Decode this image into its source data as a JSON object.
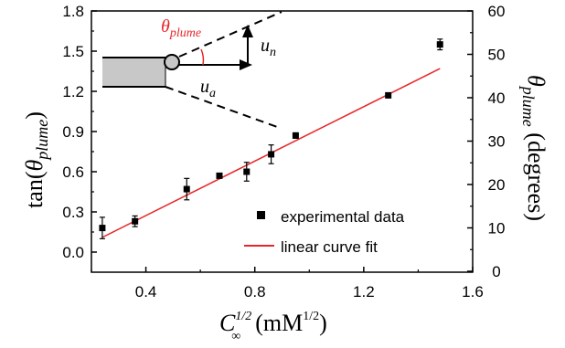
{
  "chart_data": {
    "type": "scatter",
    "xlabel": {
      "main": "C",
      "sup": "1/2",
      "sub": "∞",
      "unit": "mM",
      "unit_sup": "1/2"
    },
    "ylabel_left": {
      "main": "tan(",
      "theta": "θ",
      "sub": "plume",
      "close": ")"
    },
    "ylabel_right": {
      "theta": "θ",
      "sub": "plume",
      "unit": " (degrees)"
    },
    "xlim": [
      0.2,
      1.6
    ],
    "ylim_left": [
      -0.15,
      1.8
    ],
    "ylim_right": [
      0,
      60
    ],
    "x_ticks": [
      "0.4",
      "0.8",
      "1.2",
      "1.6"
    ],
    "x_tick_values": [
      0.4,
      0.8,
      1.2,
      1.6
    ],
    "y_left_ticks": [
      "0.0",
      "0.3",
      "0.6",
      "0.9",
      "1.2",
      "1.5",
      "1.8"
    ],
    "y_left_tick_values": [
      0.0,
      0.3,
      0.6,
      0.9,
      1.2,
      1.5,
      1.8
    ],
    "y_right_ticks": [
      "0",
      "10",
      "20",
      "30",
      "40",
      "50",
      "60"
    ],
    "y_right_tick_values": [
      0,
      10,
      20,
      30,
      40,
      50,
      60
    ],
    "series": [
      {
        "name": "experimental data",
        "marker": "square",
        "color": "#000000",
        "x": [
          0.24,
          0.36,
          0.55,
          0.67,
          0.77,
          0.86,
          0.95,
          1.29,
          1.48
        ],
        "y": [
          0.18,
          0.23,
          0.47,
          0.57,
          0.6,
          0.73,
          0.87,
          1.17,
          1.55
        ],
        "err": [
          0.08,
          0.04,
          0.08,
          0.01,
          0.07,
          0.07,
          0.02,
          0.01,
          0.04
        ]
      },
      {
        "name": "linear curve fit",
        "type": "line",
        "color": "#e8262a",
        "x": [
          0.24,
          1.48
        ],
        "y": [
          0.11,
          1.37
        ]
      }
    ],
    "legend_position": "lower-right",
    "inset": {
      "theta_label": {
        "theta": "θ",
        "sub": "plume"
      },
      "un_label": {
        "main": "u",
        "sub": "n"
      },
      "ua_label": {
        "main": "u",
        "sub": "a"
      }
    }
  }
}
